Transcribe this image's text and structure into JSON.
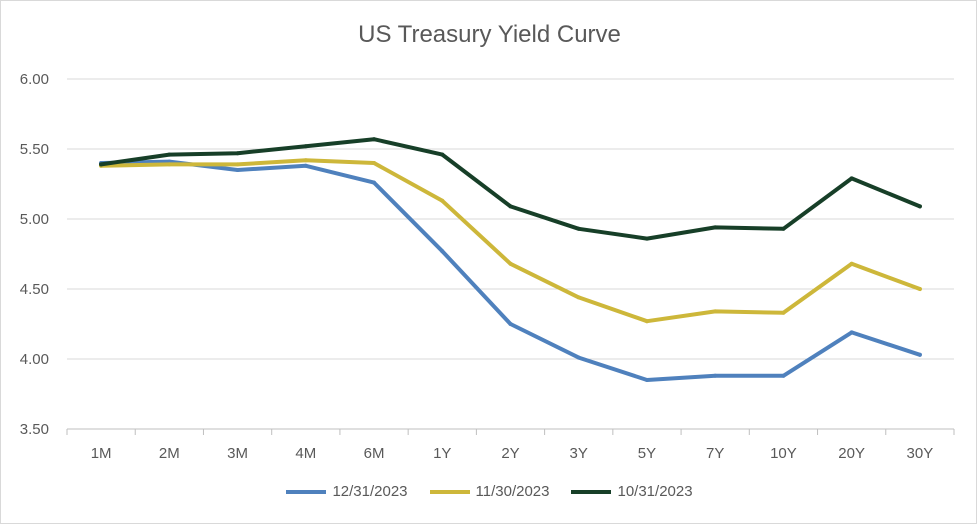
{
  "chart_data": {
    "type": "line",
    "title": "US Treasury Yield Curve",
    "xlabel": "",
    "ylabel": "",
    "categories": [
      "1M",
      "2M",
      "3M",
      "4M",
      "6M",
      "1Y",
      "2Y",
      "3Y",
      "5Y",
      "7Y",
      "10Y",
      "20Y",
      "30Y"
    ],
    "y_ticks": [
      "3.50",
      "4.00",
      "4.50",
      "5.00",
      "5.50",
      "6.00"
    ],
    "ylim": [
      3.5,
      6.0
    ],
    "grid": true,
    "legend_position": "bottom",
    "series": [
      {
        "name": "12/31/2023",
        "color": "#4f81bd",
        "values": [
          5.4,
          5.41,
          5.35,
          5.38,
          5.26,
          4.77,
          4.25,
          4.01,
          3.85,
          3.88,
          3.88,
          4.19,
          4.03
        ]
      },
      {
        "name": "11/30/2023",
        "color": "#cdb73a",
        "values": [
          5.38,
          5.39,
          5.39,
          5.42,
          5.4,
          5.13,
          4.68,
          4.44,
          4.27,
          4.34,
          4.33,
          4.68,
          4.5
        ]
      },
      {
        "name": "10/31/2023",
        "color": "#173f28",
        "values": [
          5.39,
          5.46,
          5.47,
          5.52,
          5.57,
          5.46,
          5.09,
          4.93,
          4.86,
          4.94,
          4.93,
          5.29,
          5.09
        ]
      }
    ]
  }
}
